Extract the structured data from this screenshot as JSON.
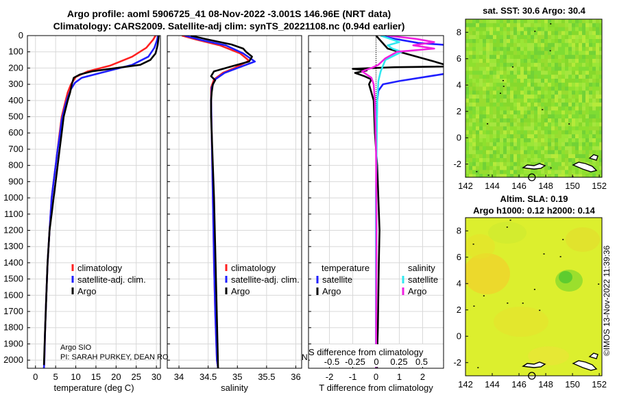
{
  "header": {
    "title_line1": "Argo profile: aoml 5906725_41 08-Nov-2022 -3.001S 146.96E (NRT data)",
    "title_line2": "Climatology: CARS2009. Satellite-adj clim: synTS_20221108.nc (0.94d earlier)"
  },
  "footer": {
    "stamp": "©IMOS 13-Nov-2022 11:39:36",
    "institution": "Argo SIO",
    "pi": "PI: SARAH PURKEY, DEAN RO",
    "overflow_fragment": "N"
  },
  "colors": {
    "climatology": "#ff2020",
    "satellite": "#1f1fff",
    "argo": "#000000",
    "sal_satellite": "#30e8f0",
    "sal_argo": "#f020e0"
  },
  "chart_data": [
    {
      "id": "temperature",
      "type": "line",
      "xlabel": "temperature (deg C)",
      "ylabel": "",
      "xlim": [
        -2,
        31
      ],
      "ylim": [
        2050,
        0
      ],
      "xticks": [
        0,
        5,
        10,
        15,
        20,
        25,
        30
      ],
      "yticks": [
        0,
        100,
        200,
        300,
        400,
        500,
        600,
        700,
        800,
        900,
        1000,
        1100,
        1200,
        1300,
        1400,
        1500,
        1600,
        1700,
        1800,
        1900,
        2000
      ],
      "legend": [
        "climatology",
        "satellite-adj. clim.",
        "Argo"
      ],
      "series": [
        {
          "name": "climatology",
          "color": "#ff2020",
          "x": [
            29.8,
            29.2,
            27.5,
            24.0,
            18.5,
            13.0,
            10.0,
            8.8,
            8.0,
            7.5,
            7.0,
            6.5,
            6.0,
            5.5,
            5.0,
            4.5,
            4.0,
            3.5,
            3.0,
            2.7,
            2.4,
            2.2,
            2.1
          ],
          "y": [
            0,
            25,
            75,
            130,
            185,
            220,
            255,
            300,
            350,
            400,
            450,
            500,
            600,
            700,
            800,
            900,
            1000,
            1200,
            1400,
            1600,
            1800,
            2000,
            2050
          ]
        },
        {
          "name": "satellite-adj. clim.",
          "color": "#1f1fff",
          "x": [
            30.4,
            30.2,
            29.5,
            28.0,
            24.0,
            17.0,
            11.5,
            9.8,
            8.8,
            8.0,
            7.5,
            7.0,
            6.5,
            6.0,
            5.5,
            5.0,
            4.5,
            4.0,
            3.5,
            3.0,
            2.7,
            2.4,
            2.2,
            2.1
          ],
          "y": [
            0,
            25,
            75,
            130,
            180,
            225,
            260,
            290,
            330,
            380,
            420,
            470,
            520,
            620,
            700,
            800,
            900,
            1000,
            1200,
            1400,
            1600,
            1800,
            2000,
            2050
          ]
        },
        {
          "name": "Argo",
          "color": "#000000",
          "x": [
            30.6,
            30.5,
            30.3,
            29.8,
            28.5,
            26.0,
            20.0,
            14.0,
            11.0,
            9.5,
            9.0,
            8.6,
            8.0,
            7.5,
            7.0,
            6.5,
            6.0,
            5.5,
            5.0,
            4.5,
            4.0,
            3.5,
            3.0,
            2.7,
            2.4,
            2.2,
            2.1
          ],
          "y": [
            0,
            20,
            60,
            110,
            150,
            180,
            200,
            220,
            240,
            260,
            300,
            350,
            400,
            450,
            500,
            600,
            700,
            800,
            900,
            1000,
            1100,
            1200,
            1400,
            1600,
            1800,
            1950,
            2030
          ]
        }
      ]
    },
    {
      "id": "salinity",
      "type": "line",
      "xlabel": "salinity",
      "ylabel": "",
      "xlim": [
        33.8,
        36.1
      ],
      "ylim": [
        2050,
        0
      ],
      "xticks": [
        34,
        34.5,
        35,
        35.5,
        36
      ],
      "xticklabels": [
        "34",
        "34.5",
        "35",
        "35.5",
        "36"
      ],
      "legend": [
        "climatology",
        "satellite-adj. clim.",
        "Argo"
      ],
      "series": [
        {
          "name": "climatology",
          "color": "#ff2020",
          "x": [
            34.05,
            34.3,
            34.7,
            35.05,
            35.2,
            34.95,
            34.75,
            34.6,
            34.55,
            34.55,
            34.56,
            34.58,
            34.6,
            34.62,
            34.65,
            34.67
          ],
          "y": [
            0,
            25,
            60,
            110,
            155,
            200,
            230,
            270,
            320,
            400,
            600,
            1000,
            1400,
            1700,
            2000,
            2050
          ]
        },
        {
          "name": "satellite-adj. clim.",
          "color": "#1f1fff",
          "x": [
            34.1,
            34.35,
            34.8,
            35.1,
            35.3,
            35.0,
            34.78,
            34.62,
            34.56,
            34.55,
            34.56,
            34.58,
            34.6,
            34.62,
            34.65,
            34.67
          ],
          "y": [
            0,
            25,
            60,
            110,
            160,
            200,
            230,
            270,
            320,
            400,
            600,
            1000,
            1400,
            1700,
            2000,
            2050
          ]
        },
        {
          "name": "Argo",
          "color": "#000000",
          "x": [
            34.2,
            34.5,
            34.9,
            35.1,
            35.15,
            35.25,
            35.2,
            34.9,
            34.6,
            34.55,
            34.62,
            34.58,
            34.56,
            34.55,
            34.55,
            34.56,
            34.58,
            34.6,
            34.62,
            34.64,
            34.66,
            34.67
          ],
          "y": [
            0,
            25,
            55,
            80,
            100,
            130,
            160,
            190,
            220,
            250,
            275,
            300,
            350,
            400,
            500,
            600,
            800,
            1000,
            1300,
            1600,
            1900,
            2050
          ]
        }
      ]
    },
    {
      "id": "differences",
      "type": "line",
      "xlabel": "T difference from climatology",
      "ylabel": "",
      "xlim": [
        -2.9,
        2.9
      ],
      "ylim": [
        2050,
        0
      ],
      "xticks": [
        -2,
        -1,
        0,
        1,
        2
      ],
      "top_axis_label": "S difference from climatology",
      "top_xticks": [
        "-0.5",
        "-0.25",
        "0",
        "0.25",
        "0.5"
      ],
      "legend_headers": [
        "temperature",
        "salinity"
      ],
      "legend": [
        "satellite",
        "Argo",
        "satellite",
        "Argo"
      ],
      "series": [
        {
          "name": "temperature satellite",
          "color": "#1f1fff",
          "x": [
            0.2,
            0.8,
            1.8,
            3.2,
            3.2,
            1.0,
            0.3,
            0.1,
            0.05,
            0.02,
            0.0,
            0.0
          ],
          "y": [
            0,
            20,
            45,
            60,
            230,
            280,
            300,
            340,
            400,
            600,
            1000,
            2050
          ]
        },
        {
          "name": "temperature Argo",
          "color": "#000000",
          "x": [
            0.0,
            0.5,
            2.5,
            3.2,
            0.8,
            -1.0,
            -0.4,
            -0.9,
            -0.5,
            -0.2,
            -0.3,
            -0.1,
            -0.05,
            0.05,
            0.1,
            0.15,
            0.12,
            0.1,
            0.08,
            0.06,
            0.05,
            0.04
          ],
          "y": [
            0,
            80,
            160,
            190,
            195,
            205,
            215,
            230,
            250,
            270,
            300,
            400,
            600,
            800,
            1000,
            1200,
            1400,
            1600,
            1800,
            1900,
            2000,
            2050
          ]
        },
        {
          "name": "salinity satellite",
          "color": "#30e8f0",
          "x": [
            0.2,
            0.6,
            1.0,
            0.5,
            0.7,
            1.1,
            0.4,
            0.2,
            0.1,
            0.05,
            0.0,
            0.0
          ],
          "y": [
            0,
            20,
            40,
            60,
            80,
            100,
            150,
            220,
            280,
            400,
            1000,
            2050
          ]
        },
        {
          "name": "salinity Argo",
          "color": "#f020e0",
          "x": [
            0.5,
            1.7,
            2.5,
            1.6,
            2.5,
            0.9,
            0.4,
            0.1,
            -0.2,
            -0.6,
            -0.2,
            -0.1,
            -0.05,
            0.0,
            0.02,
            0.0
          ],
          "y": [
            0,
            20,
            40,
            60,
            80,
            100,
            140,
            180,
            200,
            220,
            260,
            300,
            400,
            700,
            1200,
            2050
          ]
        }
      ]
    },
    {
      "id": "sst_map",
      "type": "heatmap",
      "title": "sat. SST: 30.6 Argo: 30.4",
      "xlim": [
        142,
        152.2
      ],
      "ylim": [
        -3,
        9
      ],
      "xticks": [
        142,
        144,
        146,
        148,
        150,
        152
      ],
      "yticks": [
        -2,
        0,
        2,
        4,
        6,
        8
      ],
      "marker": {
        "lon": 146.96,
        "lat": -3.001
      }
    },
    {
      "id": "sla_map",
      "type": "heatmap",
      "title": "Altim. SLA: 0.19",
      "subtitle": "Argo h1000: 0.12 h2000: 0.14",
      "xlim": [
        142,
        152.2
      ],
      "ylim": [
        -3,
        9
      ],
      "xticks": [
        142,
        144,
        146,
        148,
        150,
        152
      ],
      "yticks": [
        -2,
        0,
        2,
        4,
        6,
        8
      ],
      "marker": {
        "lon": 146.96,
        "lat": -3.001
      }
    }
  ]
}
